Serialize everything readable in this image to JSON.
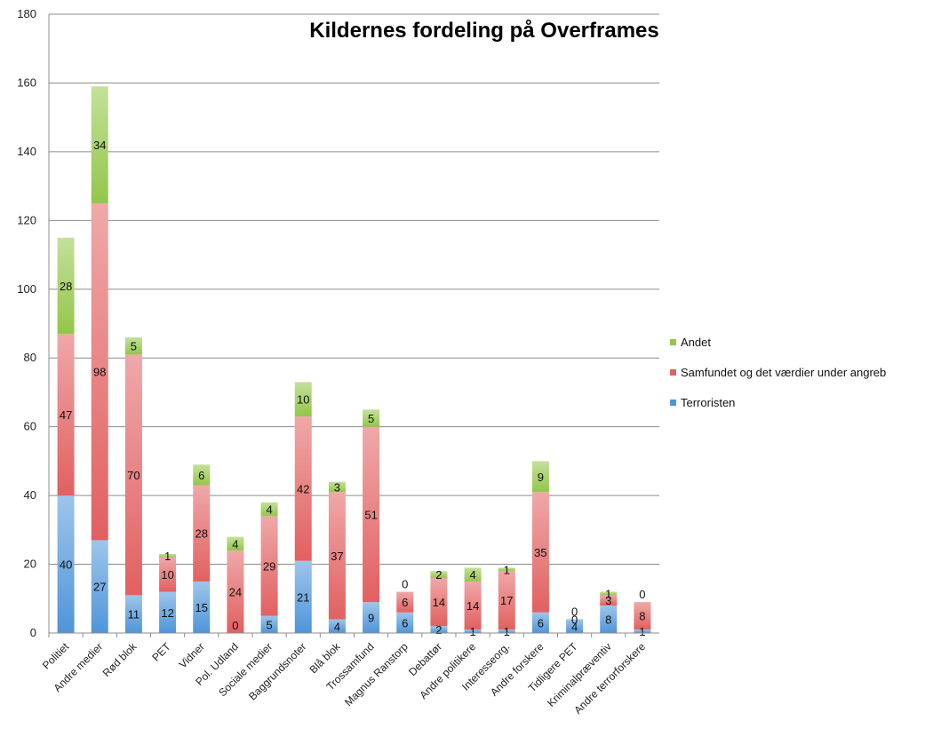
{
  "chart_data": {
    "type": "bar",
    "stacked": true,
    "title": "Kildernes fordeling på Overframes",
    "xlabel": "",
    "ylabel": "",
    "ylim": [
      0,
      180
    ],
    "yticks": [
      0,
      20,
      40,
      60,
      80,
      100,
      120,
      140,
      160,
      180
    ],
    "grid": true,
    "legend_position": "right",
    "categories": [
      "Politiet",
      "Andre medier",
      "Rød blok",
      "PET",
      "Vidner",
      "Pol. Udland",
      "Sociale medier",
      "Baggrundsnoter",
      "Blå blok",
      "Trossamfund",
      "Magnus Ranstorp",
      "Debattør",
      "Andre politikere",
      "Interesseorg.",
      "Andre forskere",
      "Tidligere PET",
      "Kriminalpræventiv",
      "Andre terrorforskere"
    ],
    "series": [
      {
        "name": "Terroristen",
        "color": "#4f95d9",
        "values": [
          40,
          27,
          11,
          12,
          15,
          0,
          5,
          21,
          4,
          9,
          6,
          2,
          1,
          1,
          6,
          4,
          8,
          1
        ]
      },
      {
        "name": "Samfundet og det værdier under angreb",
        "color": "#e26060",
        "values": [
          47,
          98,
          70,
          10,
          28,
          24,
          29,
          42,
          37,
          51,
          6,
          14,
          14,
          17,
          35,
          0,
          3,
          8
        ]
      },
      {
        "name": "Andet",
        "color": "#93c64a",
        "values": [
          28,
          34,
          5,
          1,
          6,
          4,
          4,
          10,
          3,
          5,
          0,
          2,
          4,
          1,
          9,
          0,
          1,
          0
        ]
      }
    ]
  }
}
